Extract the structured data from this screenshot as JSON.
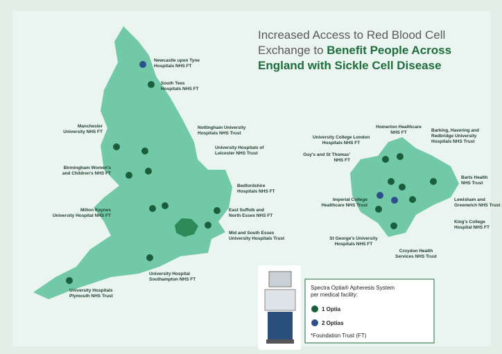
{
  "title": {
    "line1": "Increased Access to Red Blood Cell",
    "line2": "Exchange to ",
    "line2_bold": "Benefit People Across",
    "line3_bold": "England with Sickle Cell Disease"
  },
  "sites": [
    {
      "label": [
        "Newcastle upon Tyne",
        "Hospitals NHS FT"
      ],
      "optias": 2
    },
    {
      "label": [
        "South Tees",
        "Hospitals NHS FT"
      ],
      "optias": 1
    },
    {
      "label": [
        "Manchester",
        "University NHS FT"
      ],
      "optias": 1
    },
    {
      "label": [
        "Nottingham University",
        "Hospitals NHS Trust"
      ],
      "optias": 1
    },
    {
      "label": [
        "University Hospitals of",
        "Leicester NHS Trust"
      ],
      "optias": 1
    },
    {
      "label": [
        "Birmingham Women's",
        "and Children's NHS FT"
      ],
      "optias": 1
    },
    {
      "label": [
        "Bedfordshire",
        "Hospitals NHS FT"
      ],
      "optias": 1
    },
    {
      "label": [
        "Milton Keynes",
        "University Hospital NHS FT"
      ],
      "optias": 1
    },
    {
      "label": [
        "East Suffolk and",
        "North Essex NHS FT"
      ],
      "optias": 1
    },
    {
      "label": [
        "Mid and South Essex",
        "University Hospitals Trust"
      ],
      "optias": 1
    },
    {
      "label": [
        "University Hospital",
        "Southampton NHS FT"
      ],
      "optias": 1
    },
    {
      "label": [
        "University Hospitals",
        "Plymouth NHS Trust"
      ],
      "optias": 1
    },
    {
      "label": [
        "Homerton Healthcare",
        "NHS FT"
      ],
      "optias": 1
    },
    {
      "label": [
        "University College London",
        "Hospitals NHS FT"
      ],
      "optias": 1
    },
    {
      "label": [
        "Barking, Havering and",
        "Redbridge University",
        "Hospitals NHS Trust"
      ],
      "optias": 1
    },
    {
      "label": [
        "Guy's and St Thomas'",
        "NHS FT"
      ],
      "optias": 1
    },
    {
      "label": [
        "Barts Health",
        "NHS Trust"
      ],
      "optias": 1
    },
    {
      "label": [
        "Imperial College",
        "Healthcare NHS Trust"
      ],
      "optias": 2
    },
    {
      "label": [
        "King's College",
        "Hospital NHS FT"
      ],
      "optias": 2
    },
    {
      "label": [
        "Lewisham and",
        "Greenwich NHS Trust"
      ],
      "optias": 1
    },
    {
      "label": [
        "St George's University",
        "Hospitals NHS FT"
      ],
      "optias": 1
    },
    {
      "label": [
        "Croydon Health",
        "Services NHS Trust"
      ],
      "optias": 1
    }
  ],
  "legend": {
    "title": [
      "Spectra Optia® Apheresis System",
      "per medical facility:"
    ],
    "items": [
      {
        "label": "1 Optia",
        "color": "#1b5e3b"
      },
      {
        "label": "2 Optias",
        "color": "#2f4f8a"
      }
    ],
    "note": "*Foundation Trust (FT)"
  }
}
